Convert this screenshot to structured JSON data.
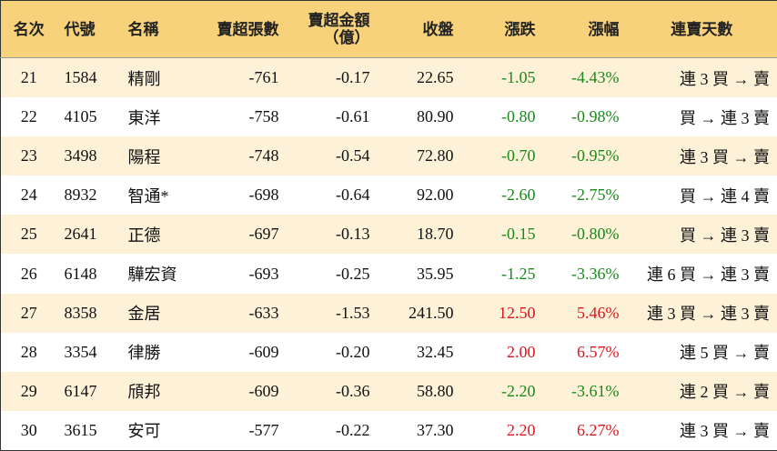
{
  "table": {
    "headers": [
      "名次",
      "代號",
      "名稱",
      "賣超張數",
      "賣超金額\n（億）",
      "收盤",
      "漲跌",
      "漲幅",
      "連賣天數"
    ],
    "rows": [
      [
        "21",
        "1584",
        "精剛",
        "-761",
        "-0.17",
        "22.65",
        "-1.05",
        "-4.43%",
        "連 3 買 → 賣"
      ],
      [
        "22",
        "4105",
        "東洋",
        "-758",
        "-0.61",
        "80.90",
        "-0.80",
        "-0.98%",
        "買 → 連 3 賣"
      ],
      [
        "23",
        "3498",
        "陽程",
        "-748",
        "-0.54",
        "72.80",
        "-0.70",
        "-0.95%",
        "連 3 買 → 賣"
      ],
      [
        "24",
        "8932",
        "智通*",
        "-698",
        "-0.64",
        "92.00",
        "-2.60",
        "-2.75%",
        "買 → 連 4 賣"
      ],
      [
        "25",
        "2641",
        "正德",
        "-697",
        "-0.13",
        "18.70",
        "-0.15",
        "-0.80%",
        "買 → 連 3 賣"
      ],
      [
        "26",
        "6148",
        "驊宏資",
        "-693",
        "-0.25",
        "35.95",
        "-1.25",
        "-3.36%",
        "連 6 買 → 連 3 賣"
      ],
      [
        "27",
        "8358",
        "金居",
        "-633",
        "-1.53",
        "241.50",
        "12.50",
        "5.46%",
        "連 3 買 → 連 3 賣"
      ],
      [
        "28",
        "3354",
        "律勝",
        "-609",
        "-0.20",
        "32.45",
        "2.00",
        "6.57%",
        "連 5 買 → 賣"
      ],
      [
        "29",
        "6147",
        "頎邦",
        "-609",
        "-0.36",
        "58.80",
        "-2.20",
        "-3.61%",
        "連 2 買 → 賣"
      ],
      [
        "30",
        "3615",
        "安可",
        "-577",
        "-0.22",
        "37.30",
        "2.20",
        "6.27%",
        "連 3 買 → 賣"
      ]
    ]
  }
}
